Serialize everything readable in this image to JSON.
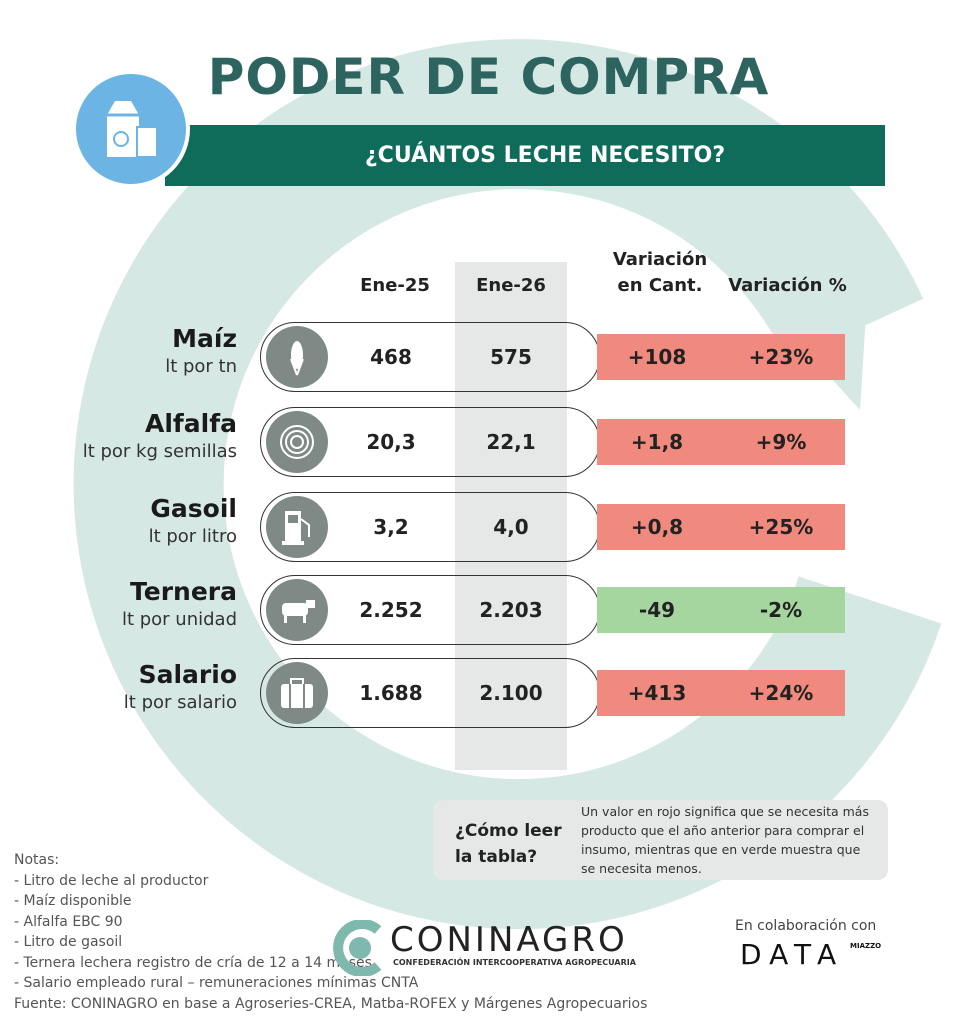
{
  "title": "PODER DE COMPRA",
  "subtitle": "¿CUÁNTOS LECHE NECESITO?",
  "header_icon": "milk-carton-icon",
  "columns": {
    "c1": "Ene-25",
    "c2": "Ene-26",
    "c3a": "Variación",
    "c3b": "en Cant.",
    "c4": "Variación %"
  },
  "colors": {
    "increase": "#f08a7e",
    "decrease": "#a5d6a0",
    "brand": "#0f6b5a",
    "accent": "#6cb4e4"
  },
  "rows": [
    {
      "name": "Maíz",
      "unit": "lt por tn",
      "icon": "corn-icon",
      "ene25": "468",
      "ene26": "575",
      "var_cant": "+108",
      "var_pct": "+23%",
      "status": "increase"
    },
    {
      "name": "Alfalfa",
      "unit": "lt por kg semillas",
      "icon": "hay-bale-icon",
      "ene25": "20,3",
      "ene26": "22,1",
      "var_cant": "+1,8",
      "var_pct": "+9%",
      "status": "increase"
    },
    {
      "name": "Gasoil",
      "unit": "lt por litro",
      "icon": "fuel-pump-icon",
      "ene25": "3,2",
      "ene26": "4,0",
      "var_cant": "+0,8",
      "var_pct": "+25%",
      "status": "increase"
    },
    {
      "name": "Ternera",
      "unit": "lt por unidad",
      "icon": "cow-icon",
      "ene25": "2.252",
      "ene26": "2.203",
      "var_cant": "-49",
      "var_pct": "-2%",
      "status": "decrease"
    },
    {
      "name": "Salario",
      "unit": "lt por salario",
      "icon": "briefcase-icon",
      "ene25": "1.688",
      "ene26": "2.100",
      "var_cant": "+413",
      "var_pct": "+24%",
      "status": "increase"
    }
  ],
  "howto": {
    "title": "¿Cómo leer la tabla?",
    "text": "Un valor en rojo significa que se necesita más producto que el año anterior para comprar el insumo, mientras que en verde muestra que se necesita menos."
  },
  "notes": [
    "Notas:",
    "- Litro de leche al productor",
    "- Maíz disponible",
    "- Alfalfa EBC 90",
    "- Litro de gasoil",
    "- Ternera lechera registro de cría de 12 a 14 meses",
    "- Salario empleado rural – remuneraciones mínimas CNTA",
    "Fuente: CONINAGRO en base a Agroseries-CREA, Matba-ROFEX y Márgenes Agropecuarios"
  ],
  "logos": {
    "coninagro": "CONINAGRO",
    "coninagro_sub": "Confederación Intercooperativa Agropecuaria",
    "collab": "En colaboración con",
    "data": "DATA",
    "data_sup": "MIAZZO"
  }
}
